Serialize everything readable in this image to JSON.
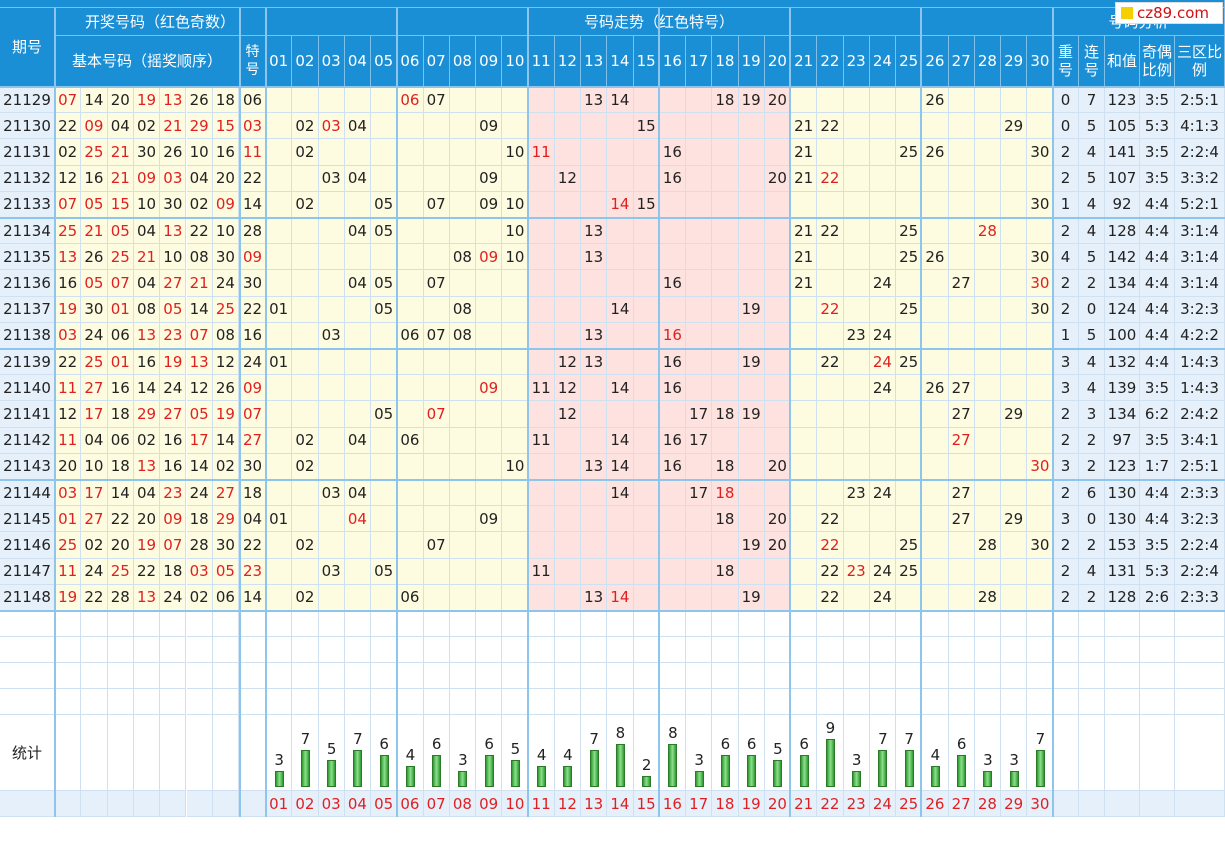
{
  "header": {
    "issue": "期号",
    "draw_group": "开奖号码（红色奇数）",
    "basic": "基本号码（摇奖顺序）",
    "special": "特号",
    "trend_group": "号码走势（红色特号）",
    "analysis_group": "号码分析",
    "analysis_cols": [
      "重号",
      "连号",
      "和值",
      "奇偶比例",
      "三区比例"
    ]
  },
  "numbers": [
    "01",
    "02",
    "03",
    "04",
    "05",
    "06",
    "07",
    "08",
    "09",
    "10",
    "11",
    "12",
    "13",
    "14",
    "15",
    "16",
    "17",
    "18",
    "19",
    "20",
    "21",
    "22",
    "23",
    "24",
    "25",
    "26",
    "27",
    "28",
    "29",
    "30"
  ],
  "draws": [
    {
      "issue": "21129",
      "basic": [
        "07",
        "14",
        "20",
        "19",
        "13",
        "26",
        "18"
      ],
      "special": "06",
      "repeat": "0",
      "consec": "7",
      "sum": "123",
      "oddeven": "3:5",
      "zones": "2:5:1"
    },
    {
      "issue": "21130",
      "basic": [
        "22",
        "09",
        "04",
        "02",
        "21",
        "29",
        "15"
      ],
      "special": "03",
      "repeat": "0",
      "consec": "5",
      "sum": "105",
      "oddeven": "5:3",
      "zones": "4:1:3"
    },
    {
      "issue": "21131",
      "basic": [
        "02",
        "25",
        "21",
        "30",
        "26",
        "10",
        "16"
      ],
      "special": "11",
      "repeat": "2",
      "consec": "4",
      "sum": "141",
      "oddeven": "3:5",
      "zones": "2:2:4"
    },
    {
      "issue": "21132",
      "basic": [
        "12",
        "16",
        "21",
        "09",
        "03",
        "04",
        "20"
      ],
      "special": "22",
      "repeat": "2",
      "consec": "5",
      "sum": "107",
      "oddeven": "3:5",
      "zones": "3:3:2"
    },
    {
      "issue": "21133",
      "basic": [
        "07",
        "05",
        "15",
        "10",
        "30",
        "02",
        "09"
      ],
      "special": "14",
      "repeat": "1",
      "consec": "4",
      "sum": "92",
      "oddeven": "4:4",
      "zones": "5:2:1"
    },
    {
      "issue": "21134",
      "basic": [
        "25",
        "21",
        "05",
        "04",
        "13",
        "22",
        "10"
      ],
      "special": "28",
      "repeat": "2",
      "consec": "4",
      "sum": "128",
      "oddeven": "4:4",
      "zones": "3:1:4"
    },
    {
      "issue": "21135",
      "basic": [
        "13",
        "26",
        "25",
        "21",
        "10",
        "08",
        "30"
      ],
      "special": "09",
      "repeat": "4",
      "consec": "5",
      "sum": "142",
      "oddeven": "4:4",
      "zones": "3:1:4"
    },
    {
      "issue": "21136",
      "basic": [
        "16",
        "05",
        "07",
        "04",
        "27",
        "21",
        "24"
      ],
      "special": "30",
      "repeat": "2",
      "consec": "2",
      "sum": "134",
      "oddeven": "4:4",
      "zones": "3:1:4"
    },
    {
      "issue": "21137",
      "basic": [
        "19",
        "30",
        "01",
        "08",
        "05",
        "14",
        "25"
      ],
      "special": "22",
      "repeat": "2",
      "consec": "0",
      "sum": "124",
      "oddeven": "4:4",
      "zones": "3:2:3"
    },
    {
      "issue": "21138",
      "basic": [
        "03",
        "24",
        "06",
        "13",
        "23",
        "07",
        "08"
      ],
      "special": "16",
      "repeat": "1",
      "consec": "5",
      "sum": "100",
      "oddeven": "4:4",
      "zones": "4:2:2"
    },
    {
      "issue": "21139",
      "basic": [
        "22",
        "25",
        "01",
        "16",
        "19",
        "13",
        "12"
      ],
      "special": "24",
      "repeat": "3",
      "consec": "4",
      "sum": "132",
      "oddeven": "4:4",
      "zones": "1:4:3"
    },
    {
      "issue": "21140",
      "basic": [
        "11",
        "27",
        "16",
        "14",
        "24",
        "12",
        "26"
      ],
      "special": "09",
      "repeat": "3",
      "consec": "4",
      "sum": "139",
      "oddeven": "3:5",
      "zones": "1:4:3"
    },
    {
      "issue": "21141",
      "basic": [
        "12",
        "17",
        "18",
        "29",
        "27",
        "05",
        "19"
      ],
      "special": "07",
      "repeat": "2",
      "consec": "3",
      "sum": "134",
      "oddeven": "6:2",
      "zones": "2:4:2"
    },
    {
      "issue": "21142",
      "basic": [
        "11",
        "04",
        "06",
        "02",
        "16",
        "17",
        "14"
      ],
      "special": "27",
      "repeat": "2",
      "consec": "2",
      "sum": "97",
      "oddeven": "3:5",
      "zones": "3:4:1"
    },
    {
      "issue": "21143",
      "basic": [
        "20",
        "10",
        "18",
        "13",
        "16",
        "14",
        "02"
      ],
      "special": "30",
      "repeat": "3",
      "consec": "2",
      "sum": "123",
      "oddeven": "1:7",
      "zones": "2:5:1"
    },
    {
      "issue": "21144",
      "basic": [
        "03",
        "17",
        "14",
        "04",
        "23",
        "24",
        "27"
      ],
      "special": "18",
      "repeat": "2",
      "consec": "6",
      "sum": "130",
      "oddeven": "4:4",
      "zones": "2:3:3"
    },
    {
      "issue": "21145",
      "basic": [
        "01",
        "27",
        "22",
        "20",
        "09",
        "18",
        "29"
      ],
      "special": "04",
      "repeat": "3",
      "consec": "0",
      "sum": "130",
      "oddeven": "4:4",
      "zones": "3:2:3"
    },
    {
      "issue": "21146",
      "basic": [
        "25",
        "02",
        "20",
        "19",
        "07",
        "28",
        "30"
      ],
      "special": "22",
      "repeat": "2",
      "consec": "2",
      "sum": "153",
      "oddeven": "3:5",
      "zones": "2:2:4"
    },
    {
      "issue": "21147",
      "basic": [
        "11",
        "24",
        "25",
        "22",
        "18",
        "03",
        "05"
      ],
      "special": "23",
      "repeat": "2",
      "consec": "4",
      "sum": "131",
      "oddeven": "5:3",
      "zones": "2:2:4"
    },
    {
      "issue": "21148",
      "basic": [
        "19",
        "22",
        "28",
        "13",
        "24",
        "02",
        "06"
      ],
      "special": "14",
      "repeat": "2",
      "consec": "2",
      "sum": "128",
      "oddeven": "2:6",
      "zones": "2:3:3"
    }
  ],
  "stats": {
    "label": "统计",
    "counts": [
      3,
      7,
      5,
      7,
      6,
      4,
      6,
      3,
      6,
      5,
      4,
      4,
      7,
      8,
      2,
      8,
      3,
      6,
      6,
      5,
      6,
      9,
      3,
      7,
      7,
      4,
      6,
      3,
      3,
      7
    ]
  },
  "watermark": "cz89.com",
  "colors": {
    "header_bg": "#1a8fd6",
    "odd_red": "#e02020",
    "zone_yellow": "#fdfbe0",
    "zone_pink": "#fde2df",
    "issue_bg": "#e5f0fb",
    "bar_green": "#2e9a2e"
  }
}
